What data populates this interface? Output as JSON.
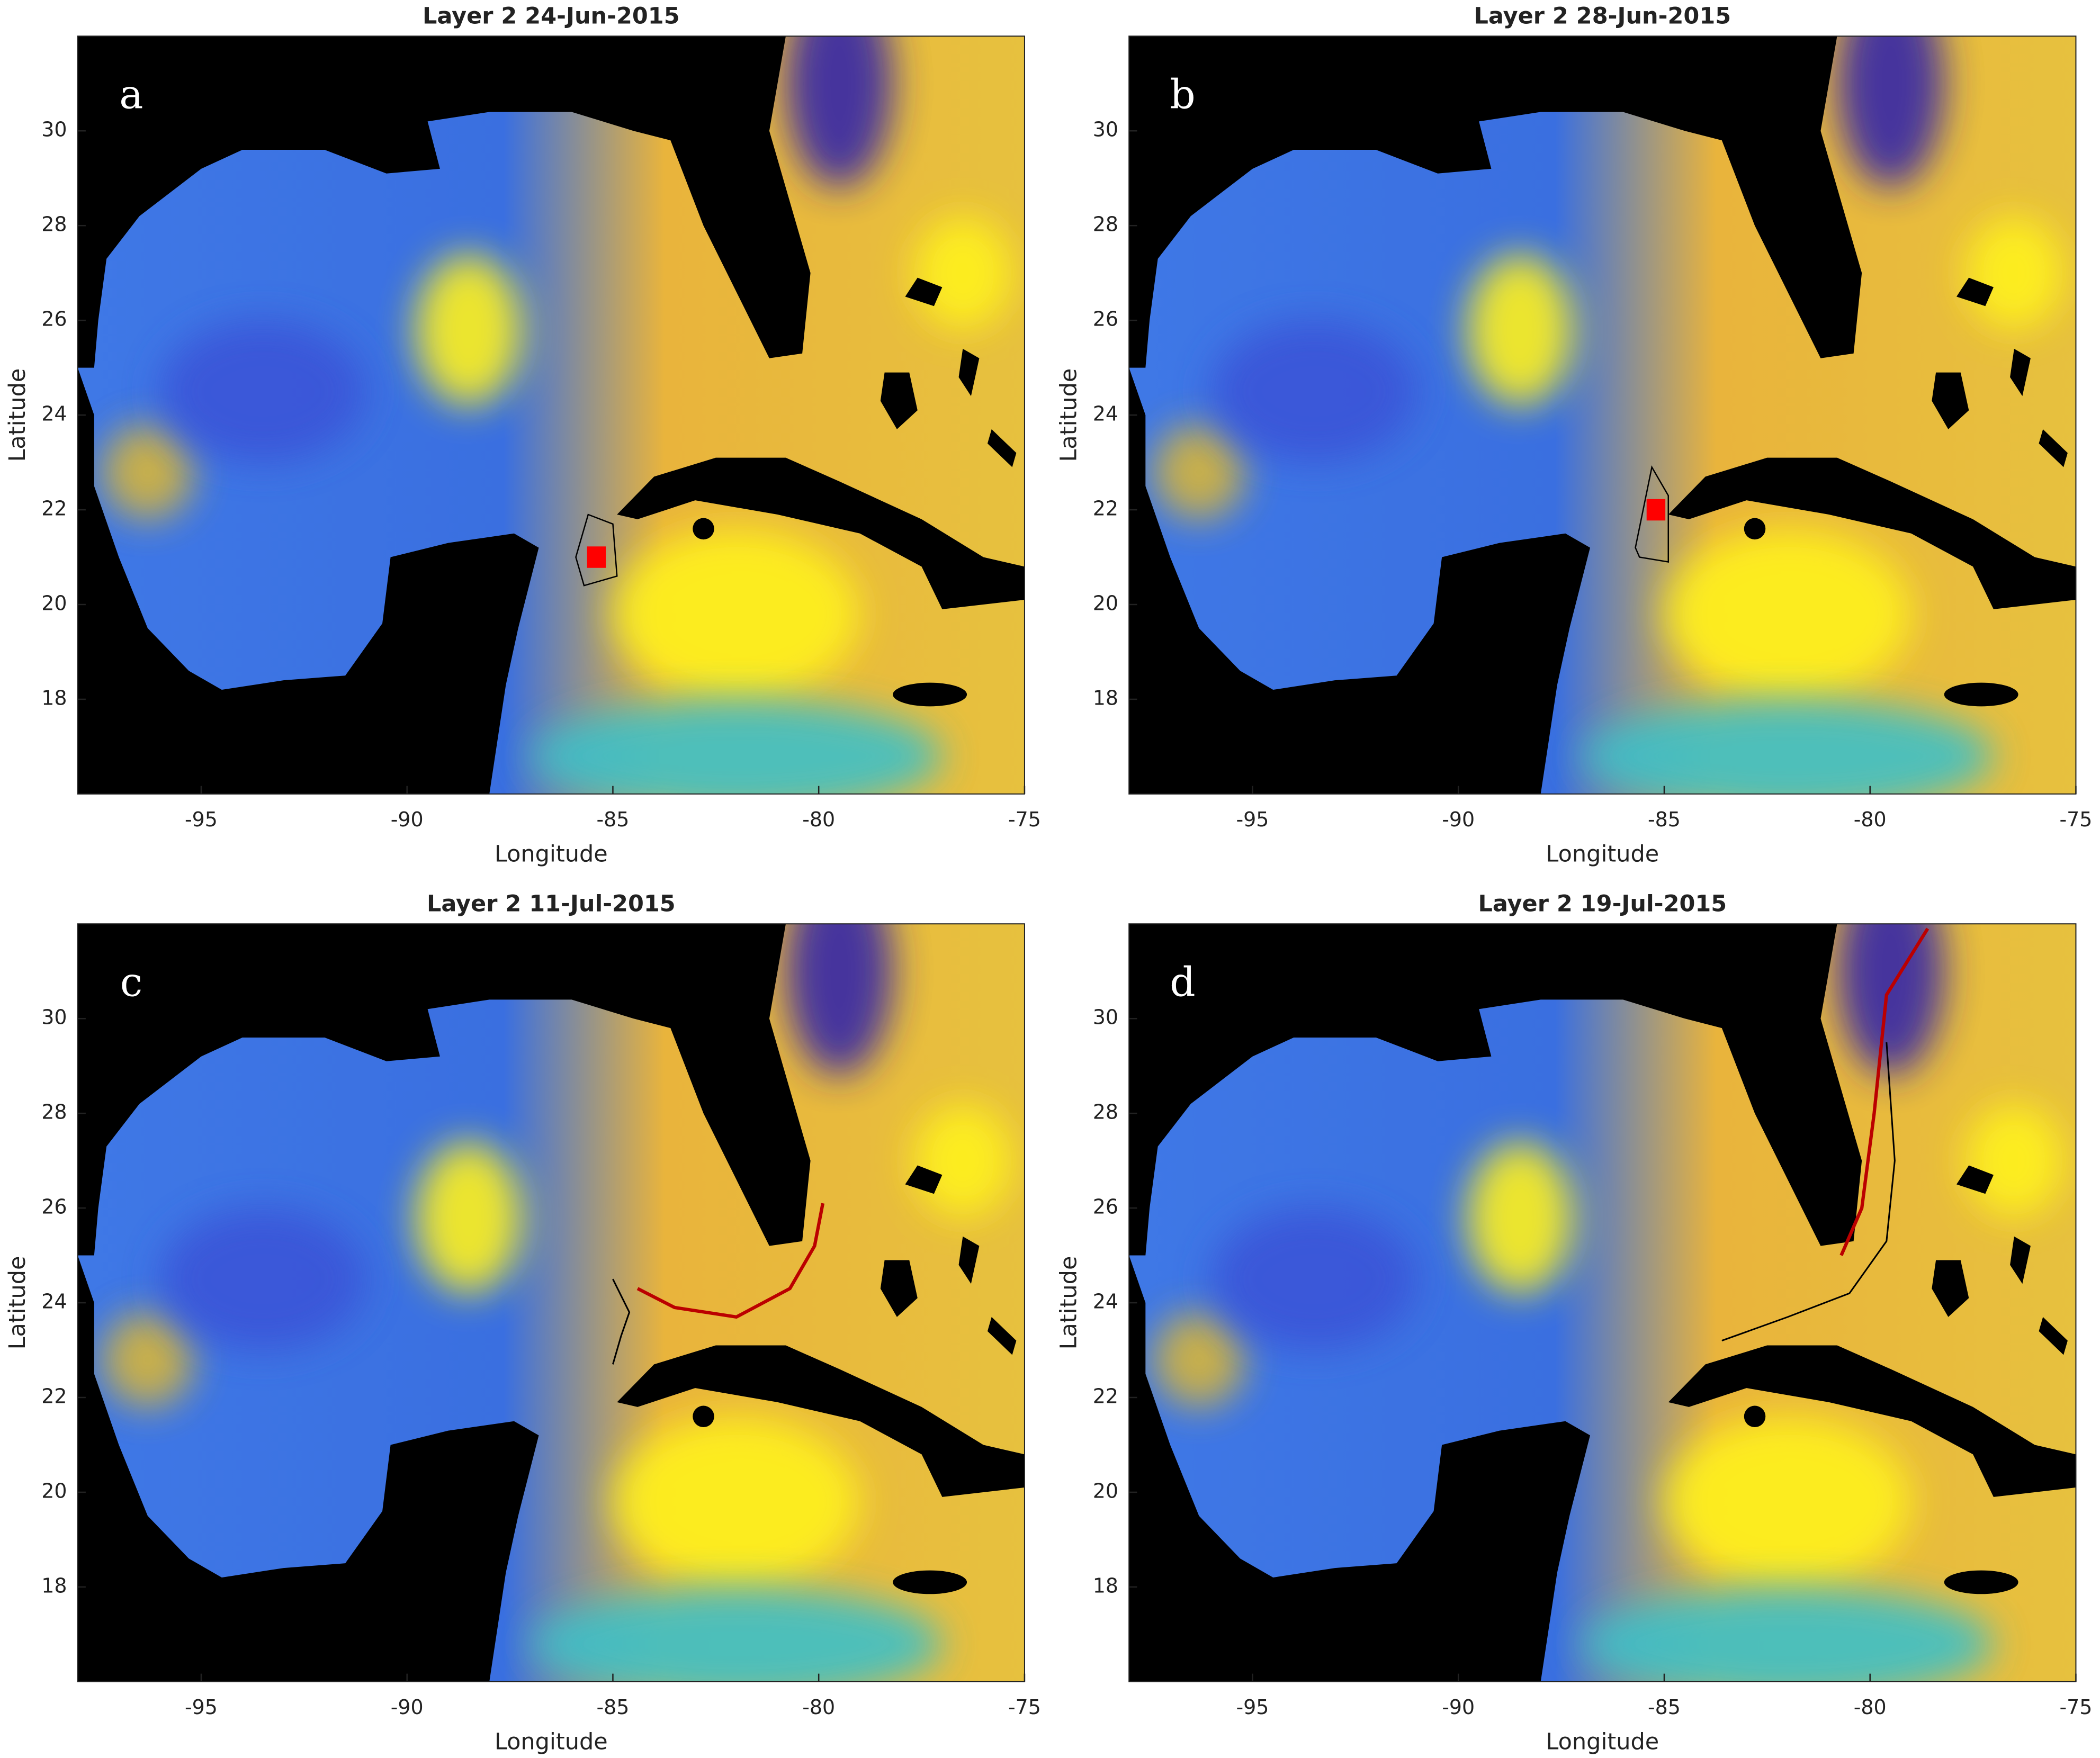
{
  "panels": [
    {
      "title": "Layer 2 24-Jun-2015",
      "letter": "a",
      "xlabel": "Longitude",
      "ylabel": "Latitude",
      "xlim": [
        -98,
        -75
      ],
      "ylim": [
        16,
        32
      ],
      "xticks": [
        -95,
        -90,
        -85,
        -80,
        -75
      ],
      "yticks": [
        18,
        20,
        22,
        24,
        26,
        28,
        30
      ]
    },
    {
      "title": "Layer 2 28-Jun-2015",
      "letter": "b",
      "xlabel": "Longitude",
      "ylabel": "Latitude",
      "xlim": [
        -98,
        -75
      ],
      "ylim": [
        16,
        32
      ],
      "xticks": [
        -95,
        -90,
        -85,
        -80,
        -75
      ],
      "yticks": [
        18,
        20,
        22,
        24,
        26,
        28,
        30
      ]
    },
    {
      "title": "Layer 2 11-Jul-2015",
      "letter": "c",
      "xlabel": "Longitude",
      "ylabel": "Latitude",
      "xlim": [
        -98,
        -75
      ],
      "ylim": [
        16,
        32
      ],
      "xticks": [
        -95,
        -90,
        -85,
        -80,
        -75
      ],
      "yticks": [
        18,
        20,
        22,
        24,
        26,
        28,
        30
      ]
    },
    {
      "title": "Layer 2 19-Jul-2015",
      "letter": "d",
      "xlabel": "Longitude",
      "ylabel": "Latitude",
      "xlim": [
        -98,
        -75
      ],
      "ylim": [
        16,
        32
      ],
      "xticks": [
        -95,
        -90,
        -85,
        -80,
        -75
      ],
      "yticks": [
        18,
        20,
        22,
        24,
        26,
        28,
        30
      ]
    }
  ]
}
